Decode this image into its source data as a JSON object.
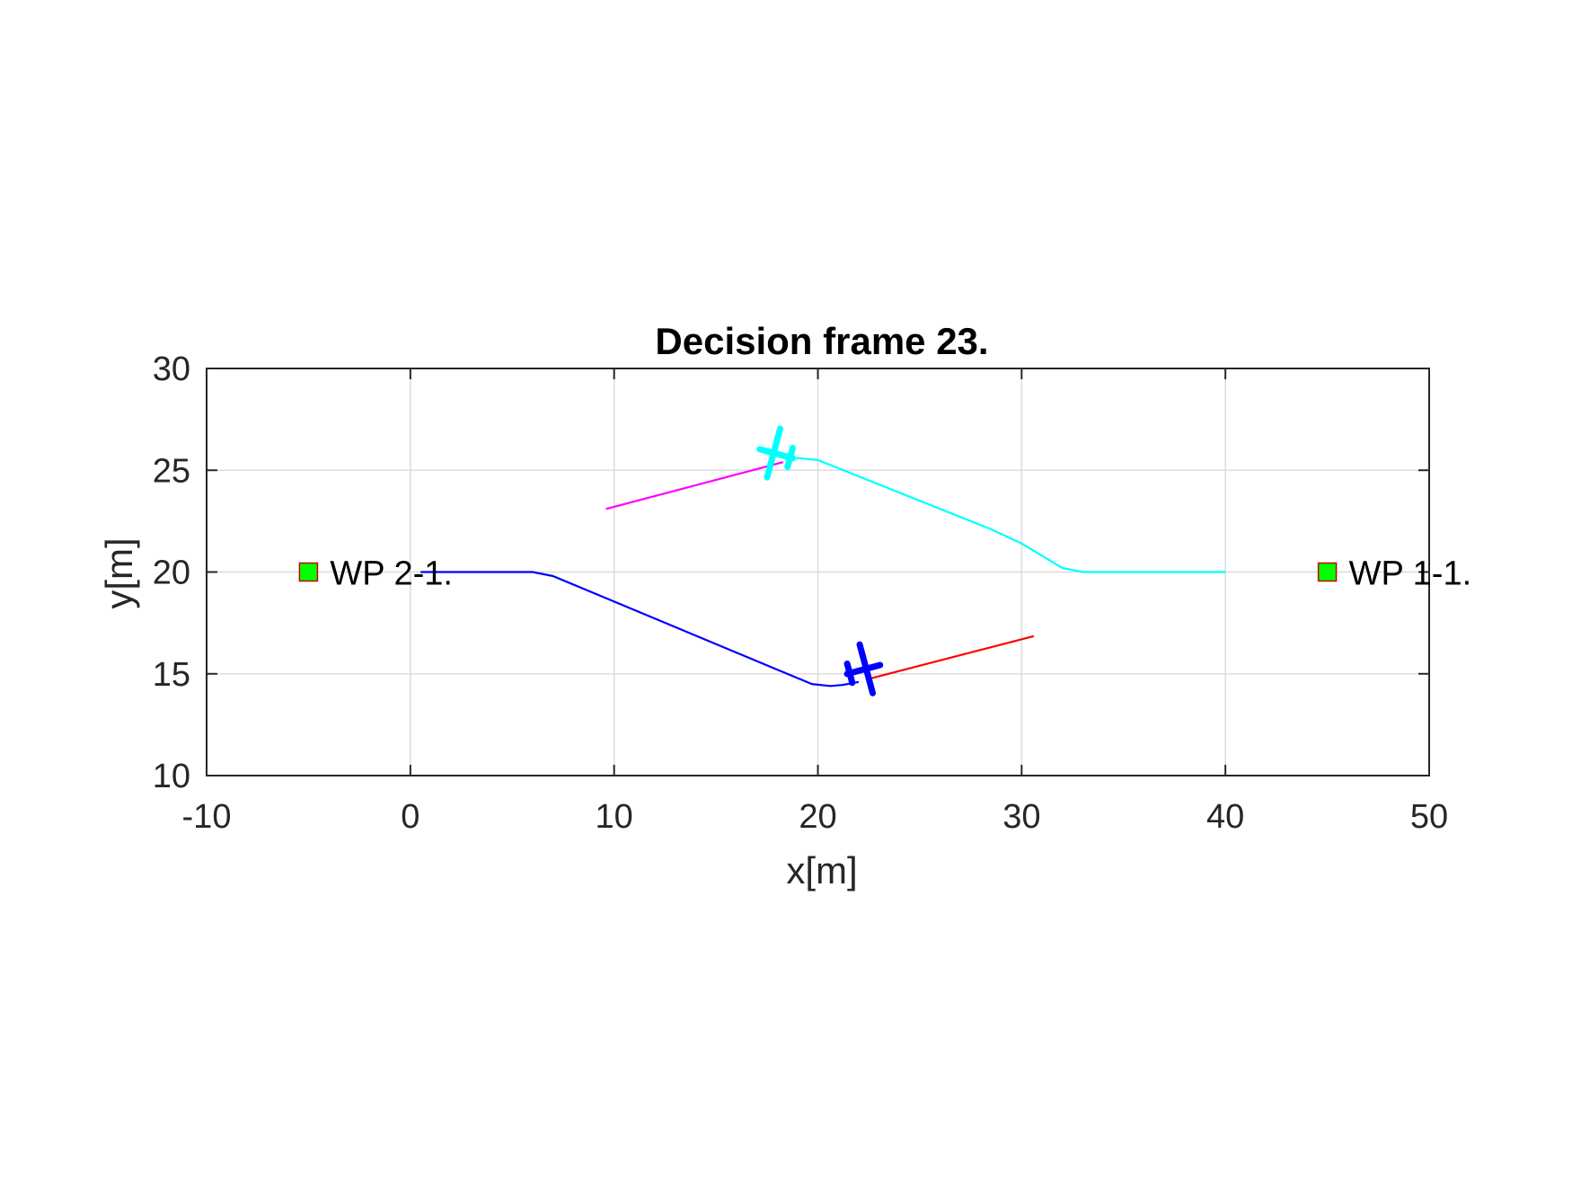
{
  "chart_data": {
    "type": "line",
    "title": "Decision frame 23.",
    "xlabel": "x[m]",
    "ylabel": "y[m]",
    "xlim": [
      -10,
      50
    ],
    "ylim": [
      10,
      30
    ],
    "xticks": [
      "-10",
      "0",
      "10",
      "20",
      "30",
      "40",
      "50"
    ],
    "yticks": [
      "10",
      "15",
      "20",
      "25",
      "30"
    ],
    "grid": true,
    "colors": {
      "uav1_path": "#00ffff",
      "uav1_projection": "#ff00ff",
      "uav2_path": "#0000ff",
      "uav2_projection": "#ff0000",
      "waypoint_fill": "#00ff00",
      "waypoint_edge": "#cc0000"
    },
    "series": [
      {
        "key": "uav1_path",
        "color": "#00ffff",
        "x": [
          40,
          33,
          32,
          31,
          30,
          28.5,
          20,
          19,
          18.5
        ],
        "y": [
          20,
          20,
          20.2,
          20.8,
          21.4,
          22.1,
          25.5,
          25.6,
          25.5
        ]
      },
      {
        "key": "uav1_projection",
        "color": "#ff00ff",
        "x": [
          9.6,
          18.3
        ],
        "y": [
          23.1,
          25.4
        ]
      },
      {
        "key": "uav2_path",
        "color": "#0000ff",
        "x": [
          0.5,
          6,
          7,
          19.7,
          20.6,
          21.2,
          22
        ],
        "y": [
          20,
          20,
          19.8,
          14.5,
          14.4,
          14.45,
          14.6
        ]
      },
      {
        "key": "uav2_projection",
        "color": "#ff0000",
        "x": [
          22.5,
          30.6
        ],
        "y": [
          14.75,
          16.85
        ]
      }
    ],
    "aircraft": [
      {
        "icon": "aircraft-icon",
        "x": 18,
        "y": 25.8,
        "heading_deg": 165,
        "color": "#00ffff"
      },
      {
        "icon": "aircraft-icon",
        "x": 22.2,
        "y": 15.2,
        "heading_deg": 15,
        "color": "#0000ff"
      }
    ],
    "waypoints": [
      {
        "x": -5,
        "y": 20,
        "label": "WP 2-1."
      },
      {
        "x": 45,
        "y": 20,
        "label": "WP 1-1."
      }
    ]
  }
}
